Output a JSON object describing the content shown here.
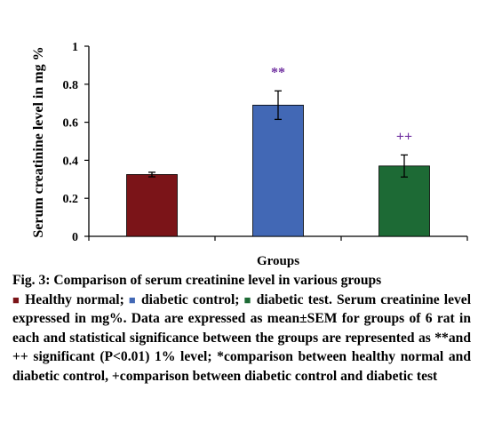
{
  "chart_data": {
    "type": "bar",
    "title": "",
    "xlabel": "Groups",
    "ylabel": "Serum creatinine level in mg %",
    "ylim": [
      0,
      1
    ],
    "yticks": [
      {
        "value": 0,
        "label": "0"
      },
      {
        "value": 0.2,
        "label": "0.2"
      },
      {
        "value": 0.4,
        "label": "0.4"
      },
      {
        "value": 0.6,
        "label": "0.6"
      },
      {
        "value": 0.8,
        "label": "0.8"
      },
      {
        "value": 1,
        "label": "1"
      }
    ],
    "categories": [
      "Healthy normal",
      "diabetic control",
      "diabetic test"
    ],
    "values": [
      0.325,
      0.69,
      0.37
    ],
    "errors": [
      0.012,
      0.075,
      0.058
    ],
    "colors": [
      "#7B1418",
      "#4268B5",
      "#1D6A35"
    ],
    "annotations": [
      "",
      "**",
      "++"
    ],
    "annotation_color": "#7030A0",
    "grid": false
  },
  "caption": {
    "title": "Fig. 3: Comparison of serum creatinine level in various groups",
    "legend_marker": "■",
    "legend": [
      "Healthy normal;",
      "diabetic control;",
      "diabetic test."
    ],
    "body": "Serum creatinine level expressed in mg%. Data are expressed as mean±SEM for groups of 6 rat in each and statistical significance between the groups are represented as **and ++ significant (P<0.01) 1% level; *comparison between healthy normal and diabetic control, +comparison between diabetic control and diabetic test"
  }
}
